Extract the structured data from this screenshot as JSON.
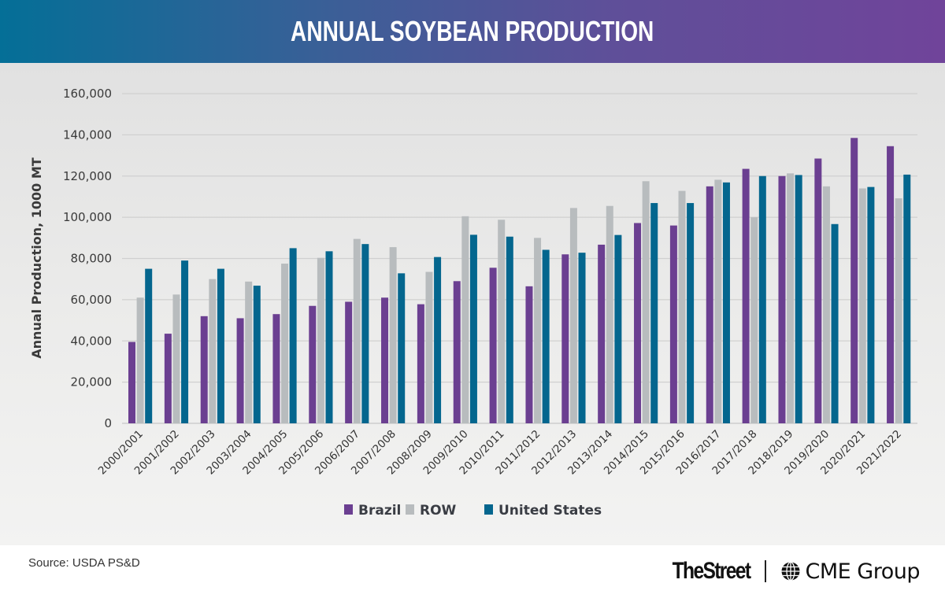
{
  "header": {
    "title": "ANNUAL SOYBEAN PRODUCTION"
  },
  "footer": {
    "source": "Source: USDA PS&D",
    "logo_thestreet": "TheStreet",
    "logo_cme": "CME Group",
    "cme_icon": "globe-icon"
  },
  "chart_data": {
    "type": "bar",
    "title": "ANNUAL SOYBEAN PRODUCTION",
    "xlabel": "",
    "ylabel": "Annual Production, 1000 MT",
    "ylim": [
      0,
      160000
    ],
    "yticks": [
      0,
      20000,
      40000,
      60000,
      80000,
      100000,
      120000,
      140000,
      160000
    ],
    "ytick_labels": [
      "0",
      "20,000",
      "40,000",
      "60,000",
      "80,000",
      "100,000",
      "120,000",
      "140,000",
      "160,000"
    ],
    "grid": "horizontal",
    "legend_position": "bottom-center",
    "categories": [
      "2000/2001",
      "2001/2002",
      "2002/2003",
      "2003/2004",
      "2004/2005",
      "2005/2006",
      "2006/2007",
      "2007/2008",
      "2008/2009",
      "2009/2010",
      "2010/2011",
      "2011/2012",
      "2012/2013",
      "2013/2014",
      "2014/2015",
      "2015/2016",
      "2016/2017",
      "2017/2018",
      "2018/2019",
      "2019/2020",
      "2020/2021",
      "2021/2022"
    ],
    "series": [
      {
        "name": "Brazil",
        "color": "#6b3f91",
        "values": [
          39500,
          43500,
          52000,
          51000,
          53000,
          57000,
          59000,
          61000,
          57800,
          69000,
          75500,
          66500,
          82000,
          86700,
          97200,
          96000,
          115000,
          123500,
          120000,
          128500,
          138500,
          134500
        ]
      },
      {
        "name": "ROW",
        "color": "#b8bcbe",
        "values": [
          61000,
          62500,
          70000,
          68800,
          77500,
          80300,
          89500,
          85500,
          73500,
          100500,
          98800,
          90000,
          104500,
          105500,
          117500,
          112800,
          118200,
          100000,
          121300,
          115000,
          114000,
          109200
        ]
      },
      {
        "name": "United States",
        "color": "#04668e",
        "values": [
          75000,
          79000,
          75000,
          66800,
          85000,
          83500,
          87000,
          72800,
          80700,
          91500,
          90600,
          84200,
          82800,
          91400,
          106900,
          106900,
          116900,
          120000,
          120500,
          96700,
          114700,
          120700
        ]
      }
    ]
  }
}
